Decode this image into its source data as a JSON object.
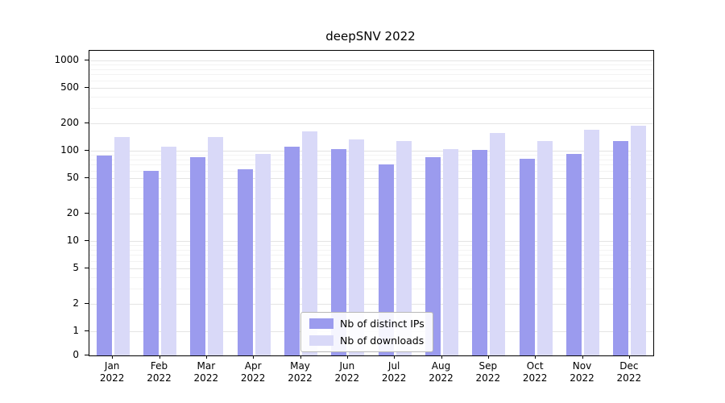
{
  "chart_data": {
    "type": "bar",
    "title": "deepSNV 2022",
    "scale": "symlog",
    "grid": true,
    "categories": [
      "Jan",
      "Feb",
      "Mar",
      "Apr",
      "May",
      "Jun",
      "Jul",
      "Aug",
      "Sep",
      "Oct",
      "Nov",
      "Dec"
    ],
    "category_year": "2022",
    "y_ticks": [
      0,
      1,
      2,
      5,
      10,
      20,
      50,
      100,
      200,
      500,
      1000
    ],
    "ylim": [
      0,
      1400
    ],
    "legend_position": "lower center",
    "series": [
      {
        "name": "Nb of distinct IPs",
        "color": "#9b9bee",
        "values": [
          88,
          60,
          84,
          62,
          110,
          104,
          70,
          84,
          102,
          82,
          92,
          128
        ]
      },
      {
        "name": "Nb of downloads",
        "color": "#d9d9f8",
        "values": [
          142,
          110,
          142,
          93,
          163,
          133,
          128,
          104,
          156,
          128,
          172,
          190
        ]
      }
    ]
  }
}
